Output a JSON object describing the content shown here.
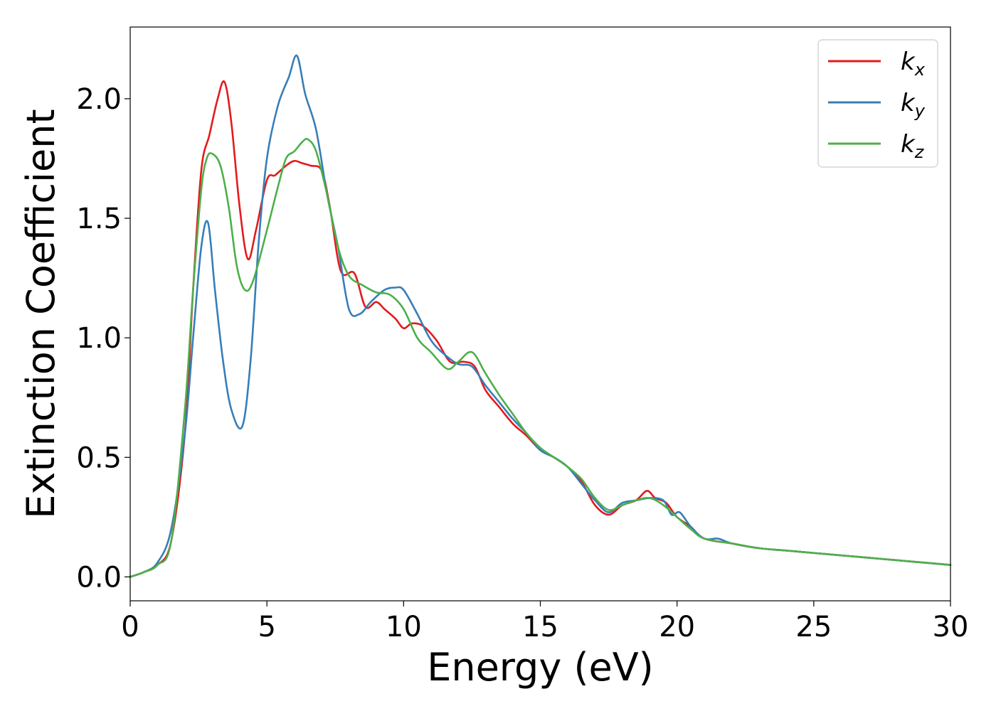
{
  "chart_data": {
    "type": "line",
    "xlabel": "Energy (eV)",
    "ylabel": "Extinction Coefficient",
    "xlim": [
      0,
      30
    ],
    "ylim": [
      -0.1,
      2.3
    ],
    "x_ticks": [
      0,
      5,
      10,
      15,
      20,
      25,
      30
    ],
    "y_ticks": [
      0.0,
      0.5,
      1.0,
      1.5,
      2.0
    ],
    "x_tick_labels": [
      "0",
      "5",
      "10",
      "15",
      "20",
      "25",
      "30"
    ],
    "y_tick_labels": [
      "0.0",
      "0.5",
      "1.0",
      "1.5",
      "2.0"
    ],
    "grid": false,
    "legend_position": "top-right",
    "series": [
      {
        "name": "k_x",
        "label_main": "k",
        "label_sub": "x",
        "color": "#e41a1c",
        "x": [
          0,
          0.5,
          1.0,
          1.5,
          2.0,
          2.3,
          2.6,
          2.9,
          3.2,
          3.45,
          3.7,
          4.0,
          4.3,
          4.6,
          5.0,
          5.3,
          5.7,
          6.0,
          6.3,
          6.6,
          7.0,
          7.3,
          7.7,
          8.2,
          8.6,
          9.0,
          9.3,
          9.7,
          10.0,
          10.3,
          10.7,
          11.2,
          11.7,
          12.2,
          12.6,
          13.0,
          13.5,
          14.0,
          14.5,
          15.0,
          15.5,
          16.0,
          16.5,
          17.0,
          17.5,
          18.0,
          18.5,
          18.9,
          19.2,
          19.6,
          20.0,
          20.5,
          21.0,
          22.0,
          23.0,
          24.0,
          25.0,
          26.0,
          27.0,
          28.0,
          29.0,
          30.0
        ],
        "y": [
          0.0,
          0.02,
          0.05,
          0.15,
          0.6,
          1.2,
          1.7,
          1.85,
          2.0,
          2.07,
          1.9,
          1.55,
          1.33,
          1.45,
          1.66,
          1.68,
          1.72,
          1.74,
          1.73,
          1.72,
          1.7,
          1.55,
          1.28,
          1.27,
          1.13,
          1.15,
          1.12,
          1.08,
          1.04,
          1.06,
          1.05,
          0.99,
          0.9,
          0.9,
          0.88,
          0.78,
          0.71,
          0.64,
          0.59,
          0.53,
          0.5,
          0.46,
          0.4,
          0.3,
          0.26,
          0.3,
          0.32,
          0.36,
          0.33,
          0.31,
          0.25,
          0.21,
          0.16,
          0.14,
          0.12,
          0.11,
          0.1,
          0.09,
          0.08,
          0.07,
          0.06,
          0.05
        ]
      },
      {
        "name": "k_y",
        "label_main": "k",
        "label_sub": "y",
        "color": "#377eb8",
        "x": [
          0,
          0.5,
          1.0,
          1.5,
          2.0,
          2.3,
          2.6,
          2.85,
          3.1,
          3.4,
          3.7,
          4.1,
          4.4,
          4.7,
          5.0,
          5.4,
          5.8,
          6.1,
          6.4,
          6.8,
          7.2,
          7.6,
          8.0,
          8.4,
          8.8,
          9.3,
          9.7,
          10.0,
          10.5,
          11.0,
          11.5,
          12.0,
          12.5,
          13.0,
          13.5,
          14.0,
          14.5,
          15.0,
          15.5,
          16.0,
          16.5,
          17.0,
          17.5,
          18.0,
          18.5,
          19.0,
          19.5,
          19.8,
          20.1,
          20.5,
          21.0,
          21.5,
          22.0,
          23.0,
          24.0,
          25.0,
          26.0,
          27.0,
          28.0,
          29.0,
          30.0
        ],
        "y": [
          0.0,
          0.02,
          0.06,
          0.2,
          0.6,
          1.0,
          1.38,
          1.48,
          1.2,
          0.9,
          0.7,
          0.63,
          0.9,
          1.4,
          1.75,
          1.97,
          2.09,
          2.18,
          2.02,
          1.87,
          1.6,
          1.38,
          1.12,
          1.1,
          1.15,
          1.2,
          1.21,
          1.2,
          1.1,
          0.99,
          0.93,
          0.89,
          0.88,
          0.8,
          0.73,
          0.66,
          0.6,
          0.53,
          0.5,
          0.46,
          0.39,
          0.32,
          0.27,
          0.31,
          0.32,
          0.33,
          0.32,
          0.26,
          0.27,
          0.21,
          0.16,
          0.16,
          0.14,
          0.12,
          0.11,
          0.1,
          0.09,
          0.08,
          0.07,
          0.06,
          0.05
        ]
      },
      {
        "name": "k_z",
        "label_main": "k",
        "label_sub": "z",
        "color": "#4daf4a",
        "x": [
          0,
          0.5,
          1.0,
          1.5,
          2.0,
          2.3,
          2.6,
          2.8,
          3.0,
          3.3,
          3.6,
          3.9,
          4.2,
          4.5,
          5.0,
          5.4,
          5.7,
          6.0,
          6.3,
          6.5,
          6.8,
          7.2,
          7.6,
          8.0,
          8.5,
          9.0,
          9.5,
          10.0,
          10.5,
          11.0,
          11.6,
          12.0,
          12.5,
          13.0,
          13.5,
          14.0,
          14.5,
          15.0,
          15.5,
          16.0,
          16.5,
          17.0,
          17.5,
          18.0,
          18.5,
          19.0,
          19.5,
          20.0,
          20.5,
          21.0,
          22.0,
          23.0,
          24.0,
          25.0,
          26.0,
          27.0,
          28.0,
          29.0,
          30.0
        ],
        "y": [
          0.0,
          0.02,
          0.05,
          0.15,
          0.7,
          1.2,
          1.62,
          1.75,
          1.77,
          1.72,
          1.55,
          1.3,
          1.2,
          1.24,
          1.45,
          1.63,
          1.75,
          1.78,
          1.82,
          1.83,
          1.78,
          1.6,
          1.38,
          1.26,
          1.22,
          1.19,
          1.18,
          1.12,
          1.0,
          0.94,
          0.87,
          0.9,
          0.94,
          0.85,
          0.76,
          0.68,
          0.6,
          0.54,
          0.5,
          0.46,
          0.41,
          0.33,
          0.28,
          0.3,
          0.32,
          0.33,
          0.3,
          0.25,
          0.2,
          0.16,
          0.14,
          0.12,
          0.11,
          0.1,
          0.09,
          0.08,
          0.07,
          0.06,
          0.05
        ]
      }
    ]
  }
}
